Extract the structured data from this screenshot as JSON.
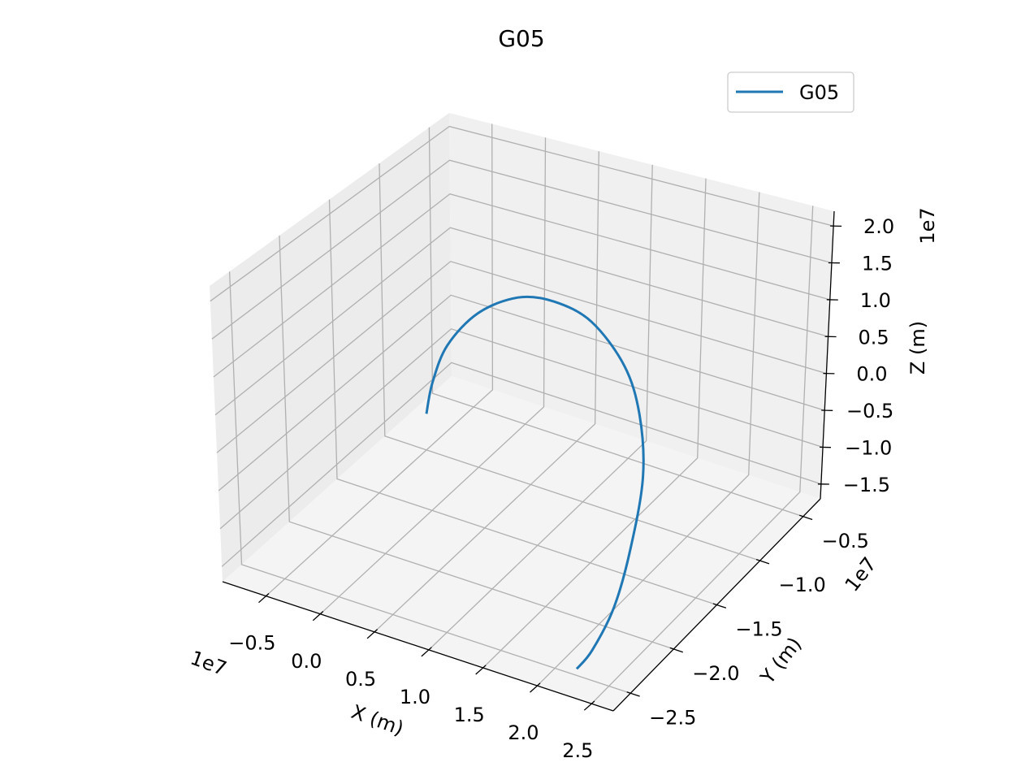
{
  "chart_data": {
    "type": "line",
    "projection": "3d",
    "title": "G05",
    "xlabel": "X (m)",
    "ylabel": "Y (m)",
    "zlabel": "Z (m)",
    "x_offset_label": "1e7",
    "y_offset_label": "1e7",
    "z_offset_label": "1e7",
    "xlim": [
      -0.9,
      2.7
    ],
    "ylim": [
      -2.7,
      -0.3
    ],
    "zlim": [
      -1.7,
      2.2
    ],
    "x_ticks": [
      -0.5,
      0.0,
      0.5,
      1.0,
      1.5,
      2.0,
      2.5
    ],
    "x_tick_labels": [
      "−0.5",
      "0.0",
      "0.5",
      "1.0",
      "1.5",
      "2.0",
      "2.5"
    ],
    "y_ticks": [
      -2.5,
      -2.0,
      -1.5,
      -1.0,
      -0.5
    ],
    "y_tick_labels": [
      "−2.5",
      "−2.0",
      "−1.5",
      "−1.0",
      "−0.5"
    ],
    "z_ticks": [
      -1.5,
      -1.0,
      -0.5,
      0.0,
      0.5,
      1.0,
      1.5,
      2.0
    ],
    "z_tick_labels": [
      "−1.5",
      "−1.0",
      "−0.5",
      "0.0",
      "0.5",
      "1.0",
      "1.5",
      "2.0"
    ],
    "grid": true,
    "legend": {
      "position": "top-right",
      "entries": [
        "G05"
      ]
    },
    "series": [
      {
        "name": "G05",
        "color": "#1f77b4",
        "points": [
          [
            -0.7,
            -0.78,
            -1.55
          ],
          [
            -0.6,
            -0.82,
            -1.0
          ],
          [
            -0.4,
            -0.88,
            -0.3
          ],
          [
            0.0,
            -1.0,
            0.5
          ],
          [
            0.5,
            -1.15,
            1.15
          ],
          [
            1.0,
            -1.35,
            1.6
          ],
          [
            1.5,
            -1.55,
            1.85
          ],
          [
            2.0,
            -1.8,
            1.85
          ],
          [
            2.3,
            -2.0,
            1.6
          ],
          [
            2.5,
            -2.2,
            1.1
          ],
          [
            2.55,
            -2.38,
            0.3
          ],
          [
            2.5,
            -2.48,
            -0.5
          ],
          [
            2.35,
            -2.52,
            -1.2
          ],
          [
            2.2,
            -2.5,
            -1.6
          ]
        ]
      }
    ]
  }
}
